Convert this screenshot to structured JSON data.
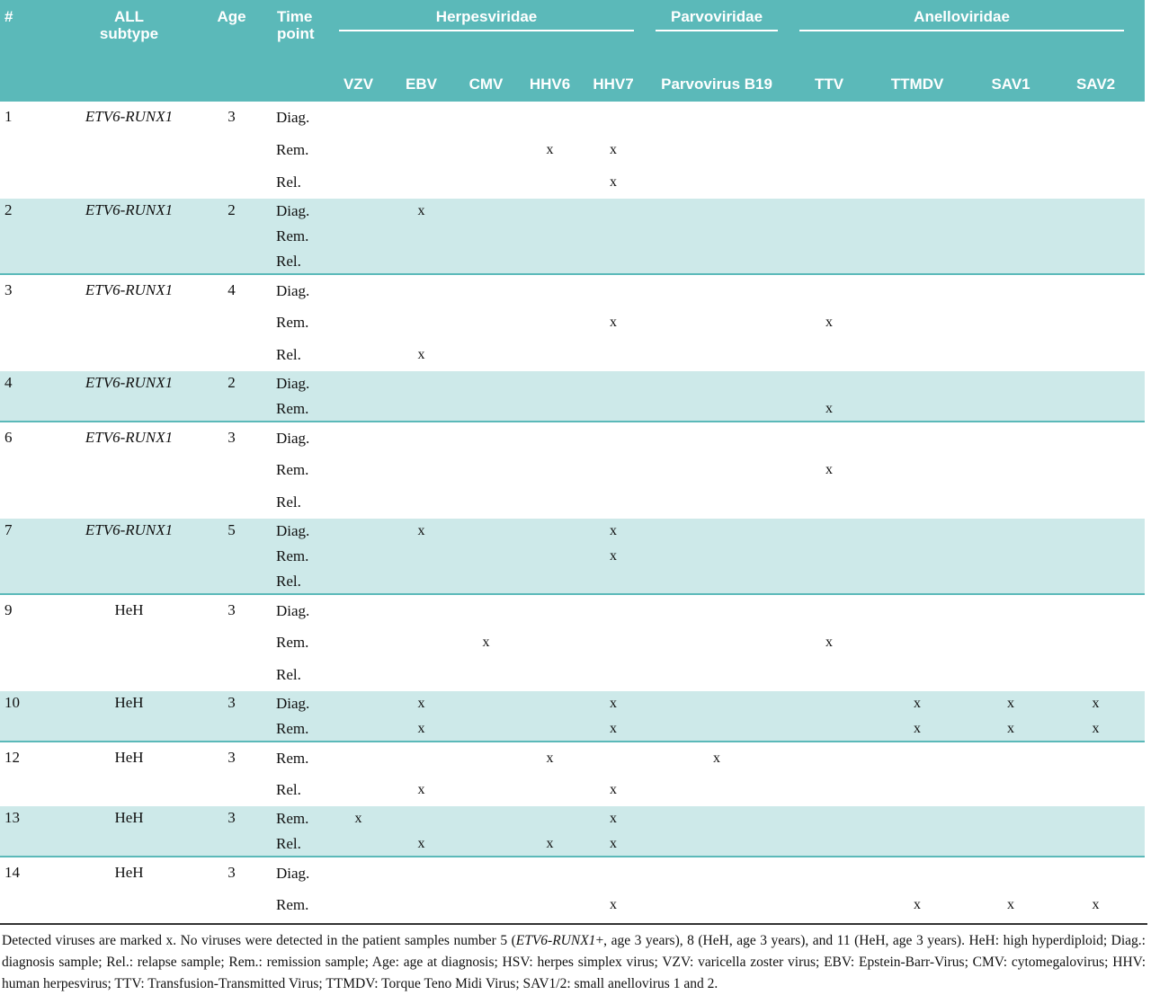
{
  "colors": {
    "header_teal": "#5bb9b9",
    "shaded_row_teal": "#cde9e9",
    "separator_teal": "#5bb9b9",
    "footnote_rule": "#333333",
    "header_text": "#ffffff",
    "body_text": "#111111"
  },
  "mark": "x",
  "header": {
    "number_col": "#",
    "subtype_col_line1": "ALL",
    "subtype_col_line2": "subtype",
    "age_col": "Age",
    "timepoint_col_line1": "Time",
    "timepoint_col_line2": "point",
    "groups": [
      {
        "label": "Herpesviridae",
        "columns": [
          "VZV",
          "EBV",
          "CMV",
          "HHV6",
          "HHV7"
        ]
      },
      {
        "label": "Parvoviridae",
        "columns": [
          "Parvovirus B19"
        ]
      },
      {
        "label": "Anelloviridae",
        "columns": [
          "TTV",
          "TTMDV",
          "SAV1",
          "SAV2"
        ]
      }
    ]
  },
  "patients": [
    {
      "id": "1",
      "subtype": "ETV6-RUNX1",
      "italic": true,
      "age": "3",
      "shaded": false,
      "rows": [
        {
          "timepoint": "Diag.",
          "detected": []
        },
        {
          "timepoint": "Rem.",
          "detected": [
            "HHV6",
            "HHV7"
          ]
        },
        {
          "timepoint": "Rel.",
          "detected": [
            "HHV7"
          ]
        }
      ]
    },
    {
      "id": "2",
      "subtype": "ETV6-RUNX1",
      "italic": true,
      "age": "2",
      "shaded": true,
      "rows": [
        {
          "timepoint": "Diag.",
          "detected": [
            "EBV"
          ]
        },
        {
          "timepoint": "Rem.",
          "detected": []
        },
        {
          "timepoint": "Rel.",
          "detected": []
        }
      ]
    },
    {
      "id": "3",
      "subtype": "ETV6-RUNX1",
      "italic": true,
      "age": "4",
      "shaded": false,
      "rows": [
        {
          "timepoint": "Diag.",
          "detected": []
        },
        {
          "timepoint": "Rem.",
          "detected": [
            "HHV7",
            "TTV"
          ]
        },
        {
          "timepoint": "Rel.",
          "detected": [
            "EBV"
          ]
        }
      ]
    },
    {
      "id": "4",
      "subtype": "ETV6-RUNX1",
      "italic": true,
      "age": "2",
      "shaded": true,
      "rows": [
        {
          "timepoint": "Diag.",
          "detected": []
        },
        {
          "timepoint": "Rem.",
          "detected": [
            "TTV"
          ]
        }
      ]
    },
    {
      "id": "6",
      "subtype": "ETV6-RUNX1",
      "italic": true,
      "age": "3",
      "shaded": false,
      "rows": [
        {
          "timepoint": "Diag.",
          "detected": []
        },
        {
          "timepoint": "Rem.",
          "detected": [
            "TTV"
          ]
        },
        {
          "timepoint": "Rel.",
          "detected": []
        }
      ]
    },
    {
      "id": "7",
      "subtype": "ETV6-RUNX1",
      "italic": true,
      "age": "5",
      "shaded": true,
      "rows": [
        {
          "timepoint": "Diag.",
          "detected": [
            "EBV",
            "HHV7"
          ]
        },
        {
          "timepoint": "Rem.",
          "detected": [
            "HHV7"
          ]
        },
        {
          "timepoint": "Rel.",
          "detected": []
        }
      ]
    },
    {
      "id": "9",
      "subtype": "HeH",
      "italic": false,
      "age": "3",
      "shaded": false,
      "rows": [
        {
          "timepoint": "Diag.",
          "detected": []
        },
        {
          "timepoint": "Rem.",
          "detected": [
            "CMV",
            "TTV"
          ]
        },
        {
          "timepoint": "Rel.",
          "detected": []
        }
      ]
    },
    {
      "id": "10",
      "subtype": "HeH",
      "italic": false,
      "age": "3",
      "shaded": true,
      "rows": [
        {
          "timepoint": "Diag.",
          "detected": [
            "EBV",
            "HHV7",
            "TTMDV",
            "SAV1",
            "SAV2"
          ]
        },
        {
          "timepoint": "Rem.",
          "detected": [
            "EBV",
            "HHV7",
            "TTMDV",
            "SAV1",
            "SAV2"
          ]
        }
      ]
    },
    {
      "id": "12",
      "subtype": "HeH",
      "italic": false,
      "age": "3",
      "shaded": false,
      "rows": [
        {
          "timepoint": "Rem.",
          "detected": [
            "HHV6",
            "Parvovirus B19"
          ]
        },
        {
          "timepoint": "Rel.",
          "detected": [
            "EBV",
            "HHV7"
          ]
        }
      ]
    },
    {
      "id": "13",
      "subtype": "HeH",
      "italic": false,
      "age": "3",
      "shaded": true,
      "rows": [
        {
          "timepoint": "Rem.",
          "detected": [
            "VZV",
            "HHV7"
          ]
        },
        {
          "timepoint": "Rel.",
          "detected": [
            "EBV",
            "HHV6",
            "HHV7"
          ]
        }
      ]
    },
    {
      "id": "14",
      "subtype": "HeH",
      "italic": false,
      "age": "3",
      "shaded": false,
      "rows": [
        {
          "timepoint": "Diag.",
          "detected": []
        },
        {
          "timepoint": "Rem.",
          "detected": [
            "HHV7",
            "TTMDV",
            "SAV1",
            "SAV2"
          ]
        }
      ]
    }
  ],
  "footer": {
    "part1": "Detected viruses are marked x. No viruses were detected in the patient samples number 5 (",
    "italic": "ETV6-RUNX1",
    "part2": "+, age 3 years), 8 (HeH, age 3 years), and 11 (HeH, age 3 years).  HeH: high hyperdiploid; Diag.: diagnosis sample; Rel.: relapse sample; Rem.: remission sample; Age: age at diagnosis; HSV: herpes simplex virus; VZV: varicella zoster virus; EBV: Epstein-Barr-Virus; CMV: cytomegalovirus; HHV: human herpesvirus; TTV: Transfusion-Transmitted Virus; TTMDV: Torque Teno Midi Virus; SAV1/2: small anellovirus 1 and 2."
  }
}
